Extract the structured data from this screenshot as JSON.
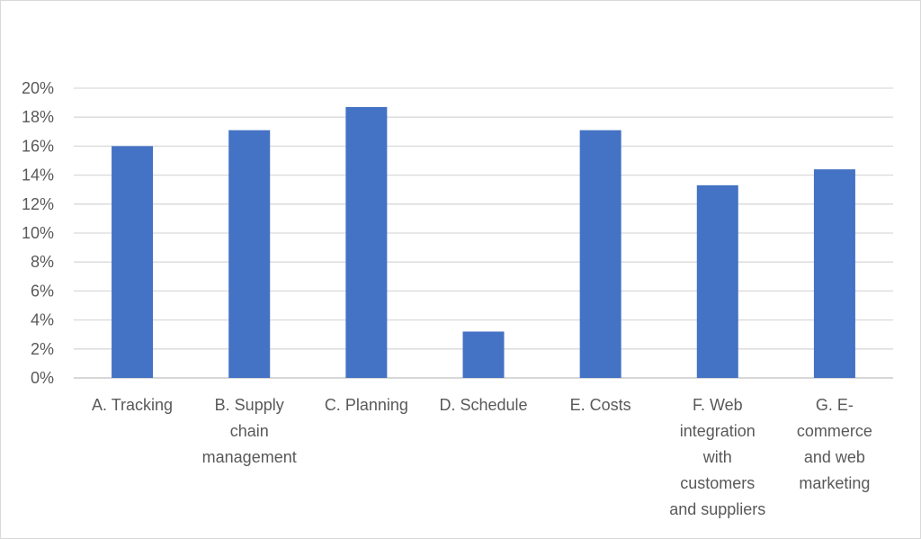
{
  "chart_data": {
    "type": "bar",
    "categories": [
      "A. Tracking",
      "B. Supply\nchain\nmanagement",
      "C. Planning",
      "D. Schedule",
      "E. Costs",
      "F. Web\nintegration\nwith\ncustomers\nand suppliers",
      "G. E-\ncommerce\nand web\nmarketing"
    ],
    "values": [
      16.0,
      17.1,
      18.7,
      3.2,
      17.1,
      13.3,
      14.4
    ],
    "unit": "%",
    "ylim": [
      0,
      20
    ],
    "yticks": [
      "0%",
      "2%",
      "4%",
      "6%",
      "8%",
      "10%",
      "12%",
      "14%",
      "16%",
      "18%",
      "20%"
    ],
    "grid": true,
    "title": "",
    "xlabel": "",
    "ylabel": "",
    "bar_color": "#4472c4",
    "grid_color": "#d9d9d9"
  }
}
